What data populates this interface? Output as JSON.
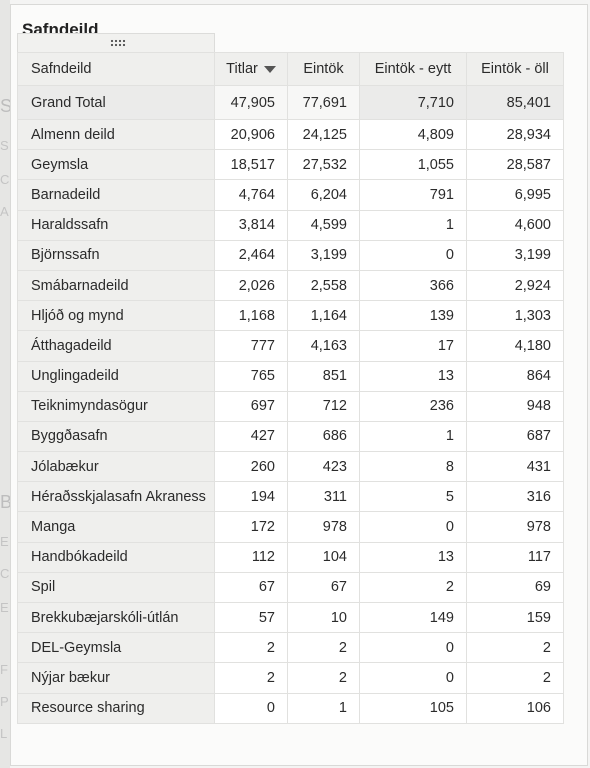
{
  "panel": {
    "title": "Safndeild"
  },
  "table": {
    "columns": [
      {
        "label": "Safndeild",
        "sorted": false
      },
      {
        "label": "Titlar",
        "sorted": true,
        "sort_direction": "descending"
      },
      {
        "label": "Eintök",
        "sorted": false
      },
      {
        "label": "Eintök - eytt",
        "sorted": false
      },
      {
        "label": "Eintök - öll",
        "sorted": false
      }
    ],
    "total_row": [
      "Grand Total",
      "47,905",
      "77,691",
      "7,710",
      "85,401"
    ],
    "rows": [
      [
        "Almenn deild",
        "20,906",
        "24,125",
        "4,809",
        "28,934"
      ],
      [
        "Geymsla",
        "18,517",
        "27,532",
        "1,055",
        "28,587"
      ],
      [
        "Barnadeild",
        "4,764",
        "6,204",
        "791",
        "6,995"
      ],
      [
        "Haraldssafn",
        "3,814",
        "4,599",
        "1",
        "4,600"
      ],
      [
        "Björnssafn",
        "2,464",
        "3,199",
        "0",
        "3,199"
      ],
      [
        "Smábarnadeild",
        "2,026",
        "2,558",
        "366",
        "2,924"
      ],
      [
        "Hljóð og mynd",
        "1,168",
        "1,164",
        "139",
        "1,303"
      ],
      [
        "Átthagadeild",
        "777",
        "4,163",
        "17",
        "4,180"
      ],
      [
        "Unglingadeild",
        "765",
        "851",
        "13",
        "864"
      ],
      [
        "Teiknimyndasögur",
        "697",
        "712",
        "236",
        "948"
      ],
      [
        "Byggðasafn",
        "427",
        "686",
        "1",
        "687"
      ],
      [
        "Jólabækur",
        "260",
        "423",
        "8",
        "431"
      ],
      [
        "Héraðsskjalasafn Akraness",
        "194",
        "311",
        "5",
        "316"
      ],
      [
        "Manga",
        "172",
        "978",
        "0",
        "978"
      ],
      [
        "Handbókadeild",
        "112",
        "104",
        "13",
        "117"
      ],
      [
        "Spil",
        "67",
        "67",
        "2",
        "69"
      ],
      [
        "Brekkubæjarskóli-útlán",
        "57",
        "10",
        "149",
        "159"
      ],
      [
        "DEL-Geymsla",
        "2",
        "2",
        "0",
        "2"
      ],
      [
        "Nýjar bækur",
        "2",
        "2",
        "0",
        "2"
      ],
      [
        "Resource sharing",
        "0",
        "1",
        "105",
        "106"
      ]
    ]
  },
  "background": {
    "letters": [
      "S",
      "S",
      "C",
      "A",
      "B",
      "E",
      "C",
      "E",
      "F",
      "P",
      "L"
    ]
  },
  "colors": {
    "header_bg": "#efefed",
    "grid_line": "#e1e1df",
    "panel_bg": "#fbfbfa"
  }
}
